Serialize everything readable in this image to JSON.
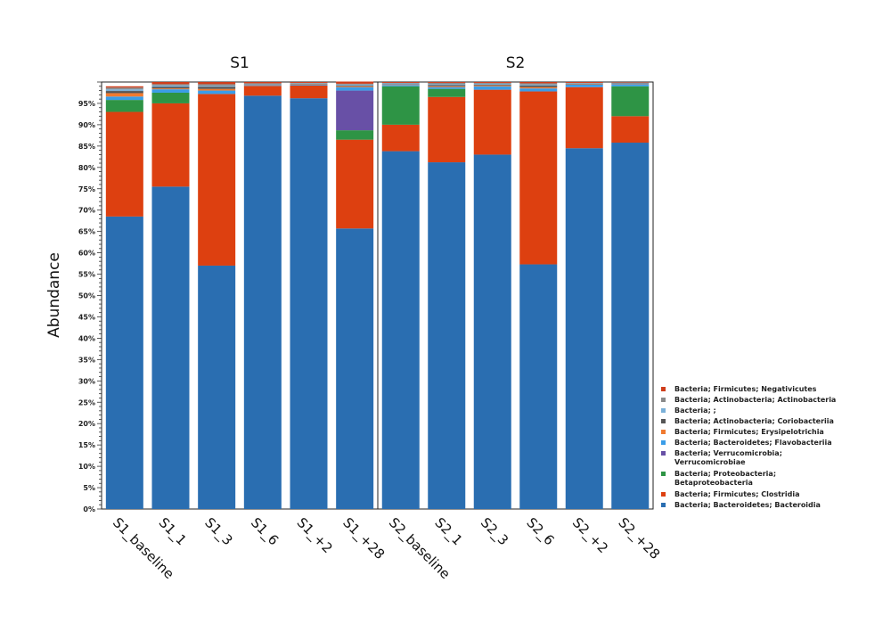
{
  "chart_data": {
    "type": "bar",
    "stacked": true,
    "ylabel": "Abundance",
    "ylim": [
      0,
      100
    ],
    "yticks": [
      "0%",
      "5%",
      "10%",
      "15%",
      "20%",
      "25%",
      "30%",
      "35%",
      "40%",
      "45%",
      "50%",
      "55%",
      "60%",
      "65%",
      "70%",
      "75%",
      "80%",
      "85%",
      "90%",
      "95%"
    ],
    "panels": [
      {
        "title": "S1",
        "categories": [
          "S1_baseline",
          "S1_1",
          "S1_3",
          "S1_6",
          "S1_+2",
          "S1_+28"
        ]
      },
      {
        "title": "S2",
        "categories": [
          "S2_baseline",
          "S2_1",
          "S2_3",
          "S2_6",
          "S2_+2",
          "S2_+28"
        ]
      }
    ],
    "legend_position": "right",
    "series": [
      {
        "name": "Bacteria; Bacteroidetes; Bacteroidia",
        "color": "#2a6eb1",
        "values": [
          68.5,
          75.5,
          57,
          96.8,
          96.2,
          65.7,
          83.8,
          81.2,
          83,
          57.3,
          84.5,
          85.8
        ]
      },
      {
        "name": "Bacteria; Firmicutes; Clostridia",
        "color": "#dd4010",
        "values": [
          24.5,
          19.5,
          40.2,
          2.3,
          3.0,
          20.8,
          6.2,
          15.3,
          15.2,
          40.5,
          14.3,
          6.2
        ]
      },
      {
        "name": "Bacteria; Proteobacteria; Betaproteobacteria",
        "color": "#2e9445",
        "values": [
          2.8,
          2.5,
          0,
          0,
          0,
          2.2,
          9.0,
          1.9,
          0,
          0,
          0,
          7.0
        ]
      },
      {
        "name": "Bacteria; Verrucomicrobia; Verrucomicrobiae",
        "color": "#6850a6",
        "values": [
          0,
          0,
          0,
          0,
          0,
          9.3,
          0,
          0,
          0,
          0,
          0,
          0
        ]
      },
      {
        "name": "Bacteria; Bacteroidetes; Flavobacteriia",
        "color": "#3a9de8",
        "values": [
          0.8,
          0.8,
          0.8,
          0.2,
          0.2,
          0.8,
          0.3,
          0.4,
          0.8,
          0.7,
          0.6,
          0.5
        ]
      },
      {
        "name": "Bacteria; Firmicutes; Erysipelotrichia",
        "color": "#f07a30",
        "values": [
          0.8,
          0.2,
          0.4,
          0.1,
          0.1,
          0.2,
          0.1,
          0.2,
          0.2,
          0.3,
          0.1,
          0.1
        ]
      },
      {
        "name": "Bacteria; Actinobacteria; Coriobacteriia",
        "color": "#555555",
        "values": [
          0.5,
          0.4,
          0.5,
          0.1,
          0.1,
          0.2,
          0.1,
          0.3,
          0.2,
          0.4,
          0.1,
          0.1
        ]
      },
      {
        "name": "Bacteria; ;",
        "color": "#7ab0d8",
        "values": [
          0.4,
          0.3,
          0.2,
          0.1,
          0.1,
          0.2,
          0.2,
          0.2,
          0.2,
          0.2,
          0.1,
          0.1
        ]
      },
      {
        "name": "Bacteria; Actinobacteria; Actinobacteria",
        "color": "#8a8a8a",
        "values": [
          0.4,
          0.3,
          0.4,
          0.1,
          0.1,
          0.2,
          0.1,
          0.3,
          0.2,
          0.3,
          0.1,
          0.1
        ]
      },
      {
        "name": "Bacteria; Firmicutes; Negativicutes",
        "color": "#cf3d1a",
        "values": [
          0.3,
          0.5,
          0.5,
          0.3,
          0.2,
          0.5,
          0.2,
          0.2,
          0.2,
          0.3,
          0.2,
          0.1
        ]
      }
    ]
  }
}
